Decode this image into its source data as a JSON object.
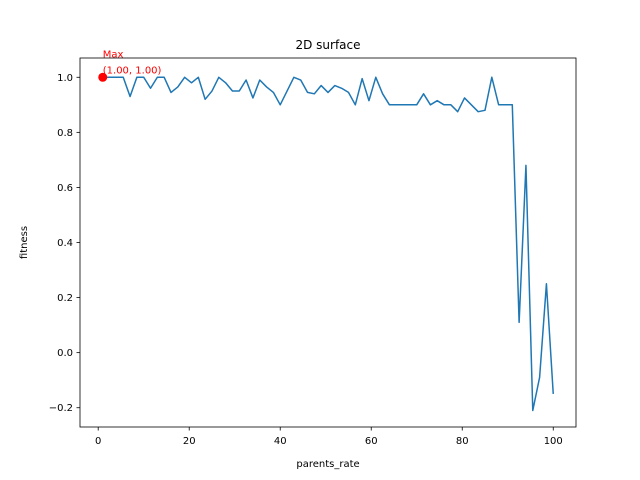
{
  "chart_data": {
    "type": "line",
    "title": "2D surface",
    "xlabel": "parents_rate",
    "ylabel": "fitness",
    "xlim": [
      -4,
      105
    ],
    "ylim": [
      -0.27,
      1.07
    ],
    "xticks": [
      0,
      20,
      40,
      60,
      80,
      100
    ],
    "yticks": [
      -0.2,
      0.0,
      0.2,
      0.4,
      0.6,
      0.8,
      1.0
    ],
    "grid": false,
    "line_color": "#1f77b4",
    "series": [
      {
        "x": [
          1,
          2.5,
          4,
          5.5,
          7,
          8.5,
          10,
          11.5,
          13,
          14.5,
          16,
          17.5,
          19,
          20.5,
          22,
          23.5,
          25,
          26.5,
          28,
          29.5,
          31,
          32.5,
          34,
          35.5,
          37,
          38.5,
          40,
          41.5,
          43,
          44.5,
          46,
          47.5,
          49,
          50.5,
          52,
          53.5,
          55,
          56.5,
          58,
          59.5,
          61,
          62.5,
          64,
          65.5,
          67,
          68.5,
          70,
          71.5,
          73,
          74.5,
          76,
          77.5,
          79,
          80.5,
          82,
          83.5,
          85,
          86.5,
          88,
          89.5,
          91,
          92.5,
          94,
          95.5,
          97,
          98.5,
          100
        ],
        "y": [
          1.0,
          1.0,
          1.0,
          1.0,
          0.93,
          1.0,
          1.0,
          0.96,
          1.0,
          1.0,
          0.945,
          0.965,
          1.0,
          0.98,
          1.0,
          0.92,
          0.95,
          1.0,
          0.98,
          0.95,
          0.95,
          0.99,
          0.925,
          0.99,
          0.965,
          0.945,
          0.9,
          0.95,
          1.0,
          0.99,
          0.945,
          0.94,
          0.97,
          0.945,
          0.97,
          0.96,
          0.945,
          0.9,
          0.995,
          0.915,
          1.0,
          0.94,
          0.9,
          0.9,
          0.9,
          0.9,
          0.9,
          0.94,
          0.9,
          0.915,
          0.9,
          0.9,
          0.875,
          0.925,
          0.9,
          0.875,
          0.88,
          1.0,
          0.9,
          0.9,
          0.9,
          0.11,
          0.68,
          -0.21,
          -0.09,
          0.25,
          -0.15
        ]
      }
    ],
    "max_point": {
      "x": 1.0,
      "y": 1.0,
      "color": "#ff0000"
    },
    "annotation_line1": "Max",
    "annotation_line2": "(1.00, 1.00)",
    "annotation_color": "#ff0000"
  }
}
